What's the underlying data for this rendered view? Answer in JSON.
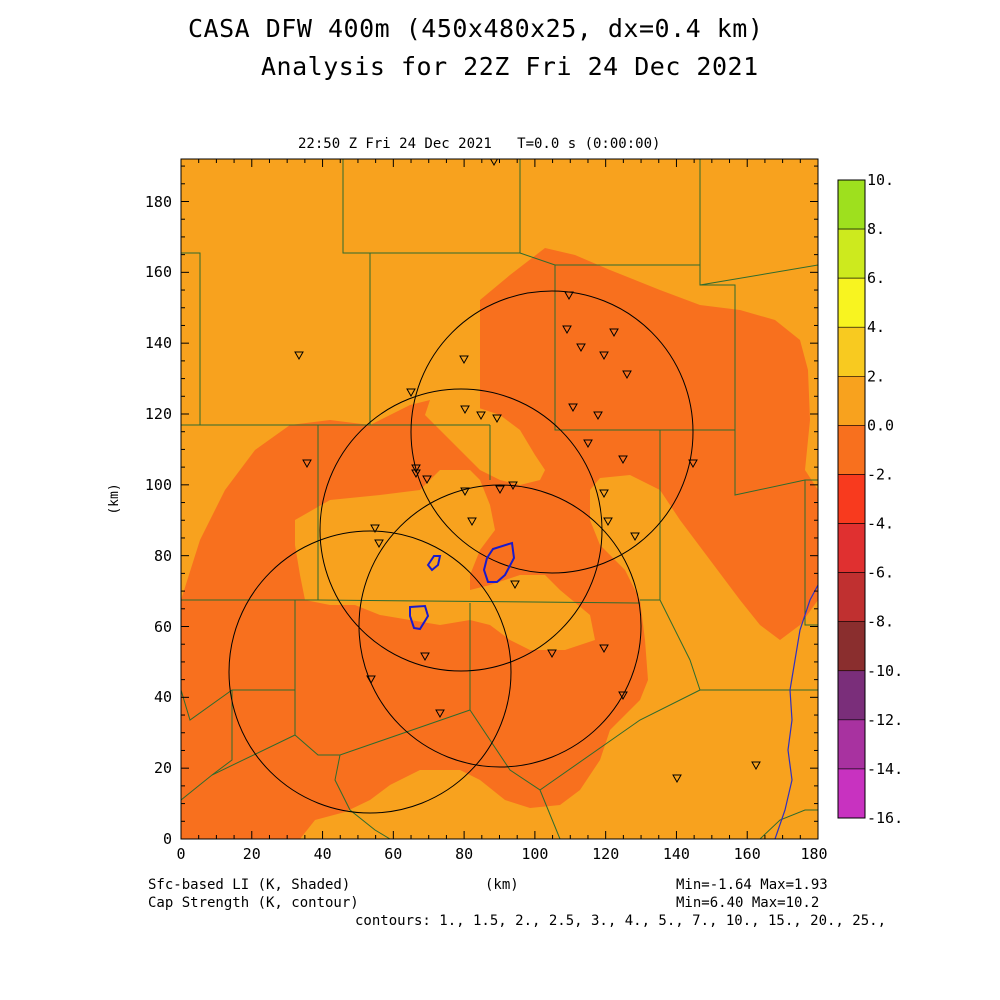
{
  "header": {
    "title_line1": "CASA DFW 400m (450x480x25, dx=0.4 km)",
    "title_line2": "Analysis for 22Z Fri 24 Dec 2021",
    "subtitle": "22:50 Z Fri 24 Dec 2021   T=0.0 s (0:00:00)"
  },
  "axes": {
    "xlabel": "(km)",
    "ylabel": "(km)",
    "x_ticks": [
      "0",
      "20",
      "40",
      "60",
      "80",
      "100",
      "120",
      "140",
      "160",
      "180"
    ],
    "y_ticks": [
      "0",
      "20",
      "40",
      "60",
      "80",
      "100",
      "120",
      "140",
      "160",
      "180"
    ],
    "xlim": [
      0,
      180
    ],
    "ylim": [
      0,
      192
    ]
  },
  "colorbar": {
    "labels": [
      "10.",
      "8.",
      "6.",
      "4.",
      "2.",
      "0.0",
      "-2.",
      "-4.",
      "-6.",
      "-8.",
      "-10.",
      "-12.",
      "-14.",
      "-16."
    ],
    "colors": [
      "#9ee01e",
      "#cdea1e",
      "#f8f420",
      "#f8ca20",
      "#f8a21e",
      "#f8701e",
      "#f83a1e",
      "#e03030",
      "#c03030",
      "#8a2e2e",
      "#7a2e7a",
      "#a832a0",
      "#c832c0",
      "#e040e0"
    ]
  },
  "footer": {
    "left_line1": "Sfc-based LI (K, Shaded)",
    "left_line2": "Cap Strength (K, contour)",
    "center_label": "(km)",
    "right_line1": "Min=-1.64 Max=1.93",
    "right_line2": "Min=6.40 Max=10.2",
    "contours": "contours: 1., 1.5, 2., 2.5, 3., 4., 5., 7., 10., 15., 20., 25.,"
  },
  "map": {
    "background_color": "#f8a21e",
    "shade_color": "#f8701e",
    "county_line_color": "#2e6b2e",
    "river_color": "#3030c0",
    "contour_color": "#1a1acc",
    "radar_ring_color": "#000000"
  }
}
